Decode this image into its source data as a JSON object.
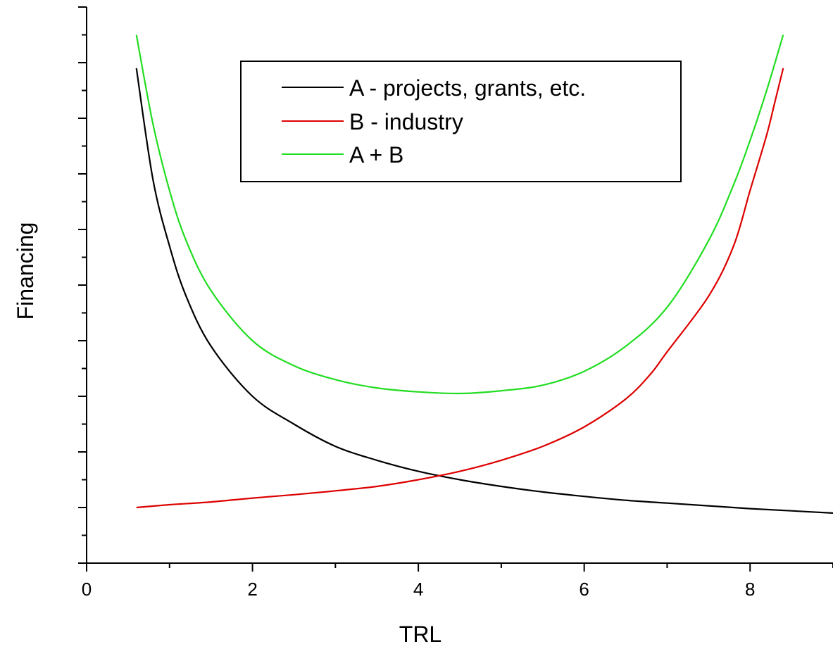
{
  "chart_data": {
    "type": "line",
    "xlabel": "TRL",
    "ylabel": "Financing",
    "xlim": [
      0,
      9
    ],
    "ylim": [
      0,
      10
    ],
    "x_ticks": [
      "0",
      "2",
      "4",
      "6",
      "8"
    ],
    "y_tick_labels_shown": false,
    "grid": false,
    "legend_position": "top-center",
    "series": [
      {
        "name": "A - projects, grants, etc.",
        "color": "#000000",
        "x": [
          0.6,
          0.8,
          1.0,
          1.2,
          1.5,
          2.0,
          2.5,
          3.0,
          3.5,
          4.0,
          4.5,
          5.0,
          5.5,
          6.0,
          6.5,
          7.0,
          7.5,
          8.0,
          8.5,
          9.0
        ],
        "values": [
          8.9,
          6.9,
          5.7,
          4.8,
          3.9,
          3.0,
          2.5,
          2.1,
          1.85,
          1.65,
          1.5,
          1.38,
          1.28,
          1.2,
          1.13,
          1.08,
          1.03,
          0.98,
          0.94,
          0.9
        ]
      },
      {
        "name": "B - industry",
        "color": "#dd0000",
        "x": [
          0.6,
          1.0,
          1.5,
          2.0,
          2.5,
          3.0,
          3.5,
          4.0,
          4.5,
          5.0,
          5.5,
          6.0,
          6.5,
          6.8,
          7.0,
          7.5,
          7.8,
          8.0,
          8.2,
          8.3,
          8.4
        ],
        "values": [
          1.0,
          1.05,
          1.1,
          1.17,
          1.23,
          1.3,
          1.38,
          1.5,
          1.65,
          1.85,
          2.1,
          2.45,
          2.95,
          3.4,
          3.8,
          4.8,
          5.7,
          6.7,
          7.7,
          8.3,
          8.9
        ]
      },
      {
        "name": "A + B",
        "color": "#22dd22",
        "x": [
          0.6,
          0.8,
          1.0,
          1.2,
          1.5,
          2.0,
          2.5,
          3.0,
          3.5,
          4.0,
          4.5,
          5.0,
          5.5,
          6.0,
          6.5,
          7.0,
          7.5,
          7.8,
          8.0,
          8.2,
          8.4
        ],
        "values": [
          9.5,
          7.9,
          6.7,
          5.8,
          4.9,
          4.0,
          3.55,
          3.3,
          3.15,
          3.08,
          3.05,
          3.1,
          3.2,
          3.45,
          3.9,
          4.6,
          5.8,
          6.8,
          7.6,
          8.5,
          9.5
        ]
      }
    ]
  }
}
